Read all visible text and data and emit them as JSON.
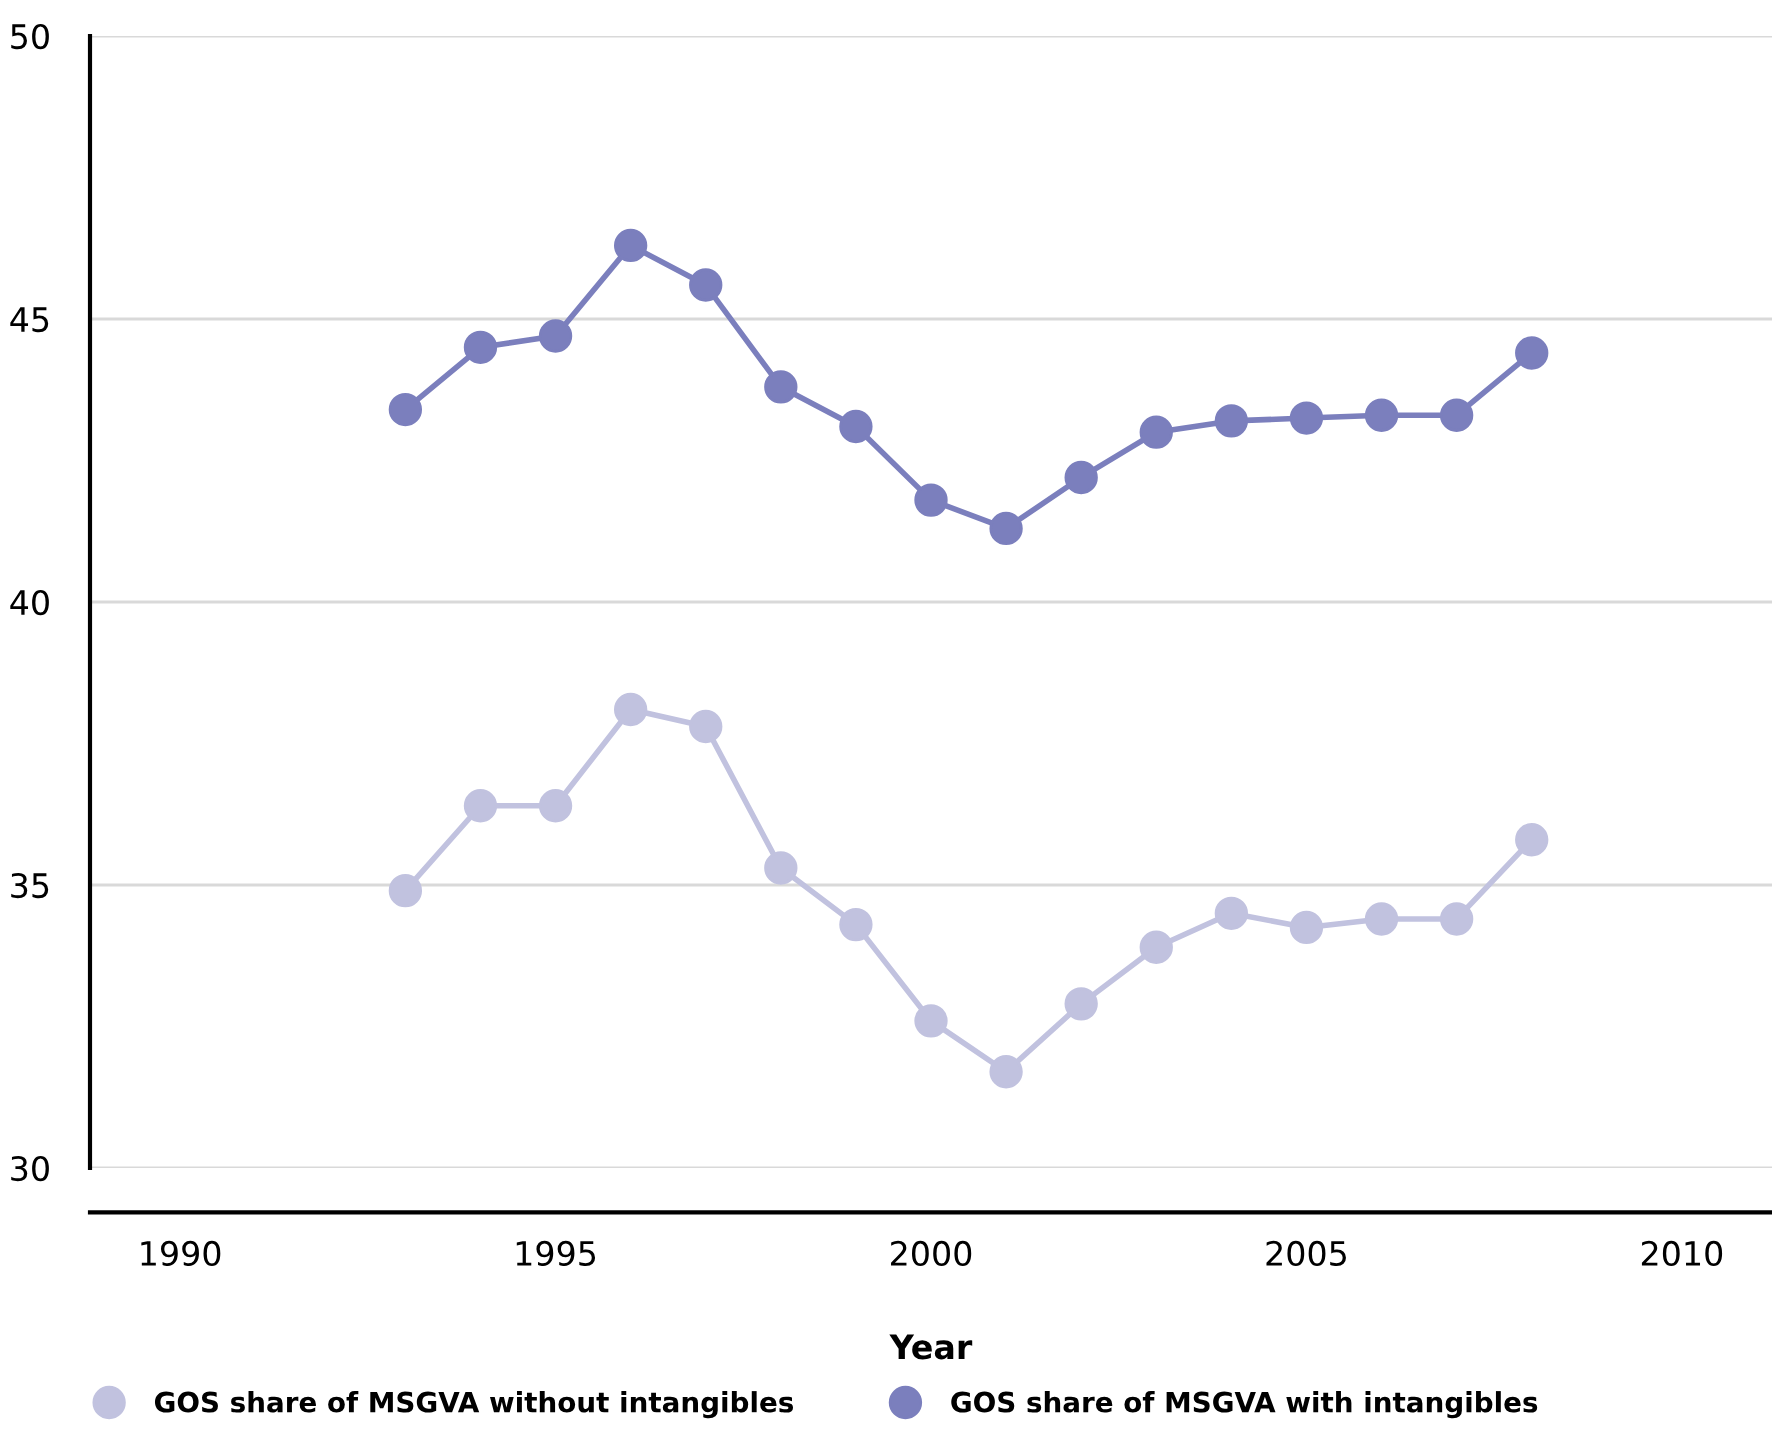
{
  "chart_data": {
    "type": "line",
    "xlabel": "Year",
    "x": [
      1993,
      1994,
      1995,
      1996,
      1997,
      1998,
      1999,
      2000,
      2001,
      2002,
      2003,
      2004,
      2005,
      2006,
      2007,
      2008
    ],
    "series": [
      {
        "name": "GOS share of MSGVA without intangibles",
        "color": "#c1c2df",
        "values": [
          34.9,
          36.4,
          36.4,
          38.1,
          37.8,
          35.3,
          34.3,
          32.6,
          31.7,
          32.9,
          33.9,
          34.5,
          34.25,
          34.4,
          34.4,
          35.8
        ]
      },
      {
        "name": "GOS share of MSGVA with intangibles",
        "color": "#7b7fbd",
        "values": [
          43.4,
          44.5,
          44.7,
          46.3,
          45.6,
          43.8,
          43.1,
          41.8,
          41.3,
          42.2,
          43.0,
          43.2,
          43.25,
          43.3,
          43.3,
          44.4
        ]
      }
    ],
    "xlim": [
      1988.8,
      2011.2
    ],
    "xticks": [
      1990,
      1995,
      2000,
      2005,
      2010
    ],
    "ylim": [
      30,
      50
    ],
    "yticks": [
      30,
      35,
      40,
      45,
      50
    ],
    "grid": "y",
    "legend": "bottom left",
    "marker": "circle",
    "line_style": "solid"
  }
}
